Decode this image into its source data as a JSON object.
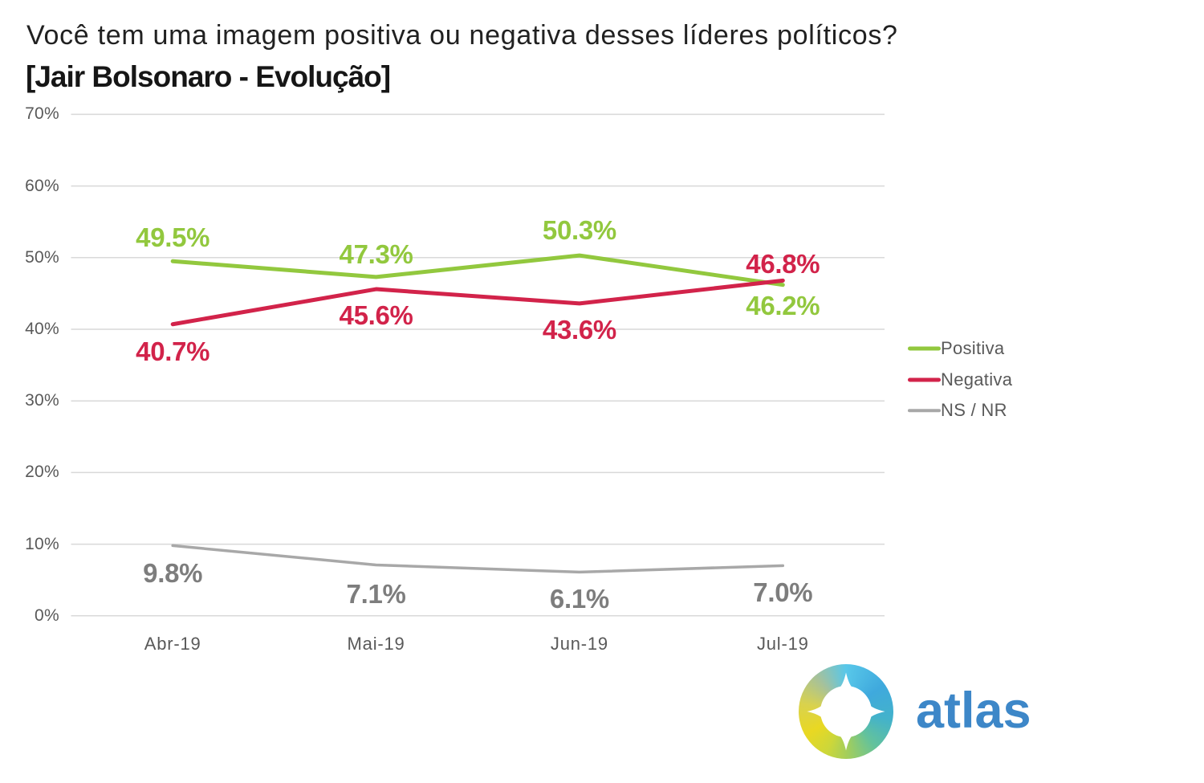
{
  "title": {
    "line1": "Você tem uma imagem positiva ou negativa desses líderes políticos?",
    "line2": "[Jair Bolsonaro - Evolução]"
  },
  "chart_data": {
    "type": "line",
    "categories": [
      "Abr-19",
      "Mai-19",
      "Jun-19",
      "Jul-19"
    ],
    "series": [
      {
        "name": "Positiva",
        "color": "#92c83e",
        "label_color": "#92c83e",
        "values": [
          49.5,
          47.3,
          50.3,
          46.2
        ],
        "labels": [
          "49.5%",
          "47.3%",
          "50.3%",
          "46.2%"
        ],
        "label_dy": [
          -29,
          -28,
          -31,
          26
        ],
        "line_width": 5
      },
      {
        "name": "Negativa",
        "color": "#d2234a",
        "label_color": "#d2234a",
        "values": [
          40.7,
          45.6,
          43.6,
          46.8
        ],
        "labels": [
          "40.7%",
          "45.6%",
          "43.6%",
          "46.8%"
        ],
        "label_dy": [
          34,
          33,
          33,
          -20
        ],
        "line_width": 5
      },
      {
        "name": "NS / NR",
        "color": "#a8a8a8",
        "label_color": "#7d7d7d",
        "values": [
          9.8,
          7.1,
          6.1,
          7.0
        ],
        "labels": [
          "9.8%",
          "7.1%",
          "6.1%",
          "7.0%"
        ],
        "label_dy": [
          35,
          37,
          34,
          34
        ],
        "line_width": 3.5
      }
    ],
    "y_axis": {
      "tick_labels": [
        "70%",
        "60%",
        "50%",
        "40%",
        "30%",
        "20%",
        "10%",
        "0%"
      ],
      "tick_values": [
        70,
        60,
        50,
        40,
        30,
        20,
        10,
        0
      ],
      "min": 0,
      "max": 70
    },
    "grid": true,
    "grid_color": "#d9d9d9",
    "legend": {
      "position": "right",
      "entries": [
        "Positiva",
        "Negativa",
        "NS / NR"
      ]
    }
  },
  "logo": {
    "text": "atlas",
    "text_color": "#3d87c8",
    "icon": "compass-gradient-disc"
  }
}
